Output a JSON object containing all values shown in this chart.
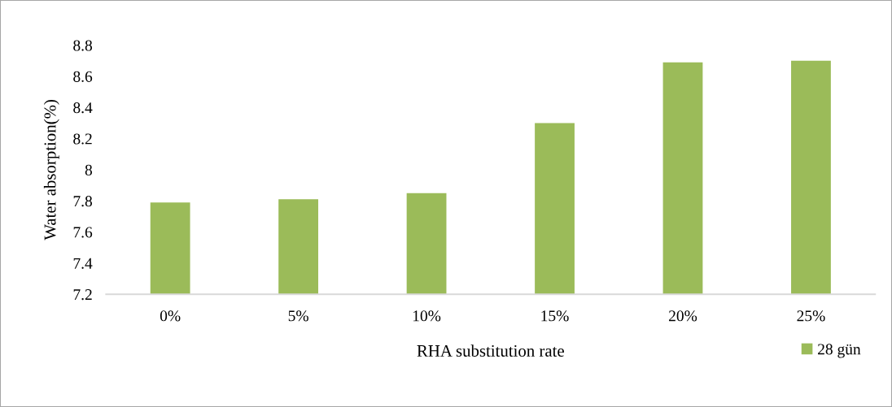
{
  "chart_data": {
    "type": "bar",
    "xlabel": "RHA substitution rate",
    "ylabel": "Water absorption(%)",
    "categories": [
      "0%",
      "5%",
      "10%",
      "15%",
      "20%",
      "25%"
    ],
    "series": [
      {
        "name": "28 gün",
        "color": "#9bbb59",
        "values": [
          7.79,
          7.81,
          7.85,
          8.3,
          8.69,
          8.7
        ]
      }
    ],
    "ylim": [
      7.2,
      8.8
    ],
    "yticks": [
      7.2,
      7.4,
      7.6,
      7.8,
      {
        "value": 8.0,
        "label": "8"
      },
      8.2,
      8.4,
      8.6,
      8.8
    ],
    "grid": false,
    "legend": "bottom right"
  }
}
